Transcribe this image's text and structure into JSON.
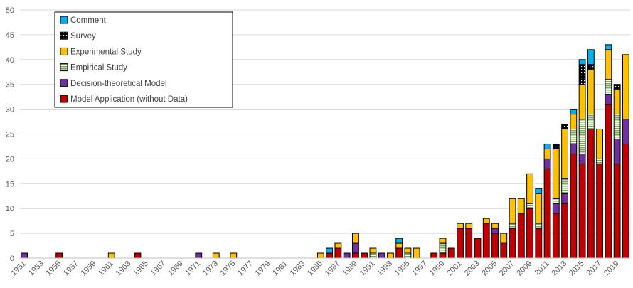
{
  "chart_data": {
    "type": "bar",
    "stacked": true,
    "title": "",
    "xlabel": "",
    "ylabel": "",
    "ylim": [
      0,
      50
    ],
    "y_ticks": [
      0,
      5,
      10,
      15,
      20,
      25,
      30,
      35,
      40,
      45,
      50
    ],
    "grid": "horizontal",
    "legend_position": "top-left",
    "categories": [
      "1951",
      "1952",
      "1953",
      "1954",
      "1955",
      "1956",
      "1957",
      "1958",
      "1959",
      "1960",
      "1961",
      "1962",
      "1963",
      "1964",
      "1965",
      "1966",
      "1967",
      "1968",
      "1969",
      "1970",
      "1971",
      "1972",
      "1973",
      "1974",
      "1975",
      "1976",
      "1977",
      "1978",
      "1979",
      "1980",
      "1981",
      "1982",
      "1983",
      "1984",
      "1985",
      "1986",
      "1987",
      "1988",
      "1989",
      "1990",
      "1991",
      "1992",
      "1993",
      "1994",
      "1995",
      "1996",
      "1997",
      "1998",
      "1999",
      "2000",
      "2001",
      "2002",
      "2003",
      "2004",
      "2005",
      "2006",
      "2007",
      "2008",
      "2009",
      "2010",
      "2011",
      "2012",
      "2013",
      "2014",
      "2015",
      "2016",
      "2017",
      "2018",
      "2019",
      "2020"
    ],
    "x_tick_labels": [
      "1951",
      "1953",
      "1955",
      "1957",
      "1959",
      "1961",
      "1963",
      "1965",
      "1967",
      "1969",
      "1971",
      "1973",
      "1975",
      "1977",
      "1979",
      "1981",
      "1983",
      "1985",
      "1987",
      "1989",
      "1991",
      "1993",
      "1995",
      "1997",
      "1999",
      "2001",
      "2003",
      "2005",
      "2007",
      "2009",
      "2011",
      "2013",
      "2015",
      "2017",
      "2019"
    ],
    "series": [
      {
        "name": "Model Application (without Data)",
        "color": "#c00000",
        "pattern": "solid",
        "values": [
          0,
          0,
          0,
          0,
          1,
          0,
          0,
          0,
          0,
          0,
          0,
          0,
          0,
          1,
          0,
          0,
          0,
          0,
          0,
          0,
          0,
          0,
          0,
          0,
          0,
          0,
          0,
          0,
          0,
          0,
          0,
          0,
          0,
          0,
          0,
          1,
          2,
          0,
          1,
          1,
          0,
          0,
          0,
          2,
          0,
          0,
          0,
          1,
          1,
          2,
          6,
          6,
          4,
          7,
          5,
          3,
          6,
          9,
          10,
          6,
          18,
          9,
          11,
          21,
          19,
          26,
          19,
          31,
          19,
          23
        ]
      },
      {
        "name": "Decision-theoretical Model",
        "color": "#7030a0",
        "pattern": "solid",
        "values": [
          1,
          0,
          0,
          0,
          0,
          0,
          0,
          0,
          0,
          0,
          0,
          0,
          0,
          0,
          0,
          0,
          0,
          0,
          0,
          0,
          1,
          0,
          0,
          0,
          0,
          0,
          0,
          0,
          0,
          0,
          0,
          0,
          0,
          0,
          0,
          0,
          0,
          1,
          2,
          0,
          0,
          1,
          0,
          0,
          0,
          0,
          0,
          0,
          0,
          0,
          0,
          0,
          0,
          0,
          1,
          0,
          0,
          0,
          0,
          0,
          2,
          2,
          2,
          2,
          2,
          0,
          0,
          2,
          5,
          5
        ]
      },
      {
        "name": "Empirical Study",
        "color": "#e2efda",
        "pattern": "hstripes",
        "values": [
          0,
          0,
          0,
          0,
          0,
          0,
          0,
          0,
          0,
          0,
          0,
          0,
          0,
          0,
          0,
          0,
          0,
          0,
          0,
          0,
          0,
          0,
          0,
          0,
          0,
          0,
          0,
          0,
          0,
          0,
          0,
          0,
          0,
          0,
          0,
          0,
          0,
          0,
          0,
          0,
          1,
          0,
          0,
          0,
          1,
          0,
          0,
          0,
          2,
          0,
          0,
          0,
          0,
          0,
          0,
          0,
          1,
          0,
          1,
          1,
          0,
          1,
          3,
          3,
          7,
          3,
          1,
          3,
          5,
          0
        ]
      },
      {
        "name": "Experimental Study",
        "color": "#ffc000",
        "pattern": "solid",
        "values": [
          0,
          0,
          0,
          0,
          0,
          0,
          0,
          0,
          0,
          0,
          1,
          0,
          0,
          0,
          0,
          0,
          0,
          0,
          0,
          0,
          0,
          0,
          1,
          0,
          1,
          0,
          0,
          0,
          0,
          0,
          0,
          0,
          0,
          0,
          1,
          0,
          1,
          0,
          2,
          0,
          1,
          0,
          1,
          1,
          1,
          2,
          0,
          0,
          1,
          0,
          1,
          1,
          0,
          1,
          1,
          2,
          5,
          3,
          6,
          6,
          2,
          10,
          10,
          3,
          7,
          9,
          6,
          6,
          5,
          13
        ]
      },
      {
        "name": "Survey",
        "color": "#000000",
        "pattern": "dotted",
        "values": [
          0,
          0,
          0,
          0,
          0,
          0,
          0,
          0,
          0,
          0,
          0,
          0,
          0,
          0,
          0,
          0,
          0,
          0,
          0,
          0,
          0,
          0,
          0,
          0,
          0,
          0,
          0,
          0,
          0,
          0,
          0,
          0,
          0,
          0,
          0,
          0,
          0,
          0,
          0,
          0,
          0,
          0,
          0,
          0,
          0,
          0,
          0,
          0,
          0,
          0,
          0,
          0,
          0,
          0,
          0,
          0,
          0,
          0,
          0,
          0,
          0,
          1,
          1,
          0,
          4,
          1,
          0,
          0,
          1,
          0
        ]
      },
      {
        "name": "Comment",
        "color": "#00b0f0",
        "pattern": "solid",
        "values": [
          0,
          0,
          0,
          0,
          0,
          0,
          0,
          0,
          0,
          0,
          0,
          0,
          0,
          0,
          0,
          0,
          0,
          0,
          0,
          0,
          0,
          0,
          0,
          0,
          0,
          0,
          0,
          0,
          0,
          0,
          0,
          0,
          0,
          0,
          0,
          1,
          0,
          0,
          0,
          0,
          0,
          0,
          0,
          1,
          0,
          0,
          0,
          0,
          0,
          0,
          0,
          0,
          0,
          0,
          0,
          0,
          0,
          0,
          0,
          1,
          1,
          0,
          0,
          1,
          1,
          3,
          0,
          1,
          0,
          0
        ]
      }
    ],
    "legend_order": [
      "Comment",
      "Survey",
      "Experimental Study",
      "Empirical Study",
      "Decision-theoretical Model",
      "Model Application (without Data)"
    ]
  }
}
